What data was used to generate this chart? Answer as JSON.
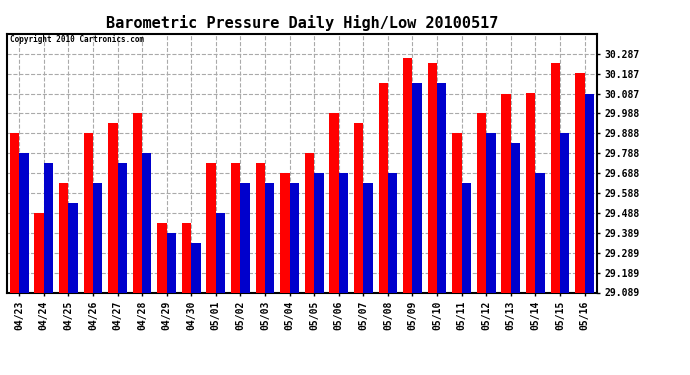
{
  "title": "Barometric Pressure Daily High/Low 20100517",
  "copyright": "Copyright 2010 Cartronics.com",
  "categories": [
    "04/23",
    "04/24",
    "04/25",
    "04/26",
    "04/27",
    "04/28",
    "04/29",
    "04/30",
    "05/01",
    "05/02",
    "05/03",
    "05/04",
    "05/05",
    "05/06",
    "05/07",
    "05/08",
    "05/09",
    "05/10",
    "05/11",
    "05/12",
    "05/13",
    "05/14",
    "05/15",
    "05/16"
  ],
  "highs": [
    29.888,
    29.488,
    29.638,
    29.888,
    29.938,
    29.988,
    29.438,
    29.438,
    29.738,
    29.738,
    29.738,
    29.688,
    29.788,
    29.988,
    29.938,
    30.138,
    30.267,
    30.238,
    29.888,
    29.988,
    30.087,
    30.088,
    30.238,
    30.188
  ],
  "lows": [
    29.788,
    29.738,
    29.538,
    29.638,
    29.738,
    29.788,
    29.388,
    29.338,
    29.488,
    29.638,
    29.638,
    29.638,
    29.688,
    29.688,
    29.638,
    29.688,
    30.138,
    30.138,
    29.638,
    29.888,
    29.838,
    29.688,
    29.888,
    30.087
  ],
  "high_color": "#ff0000",
  "low_color": "#0000cc",
  "bg_color": "#ffffff",
  "grid_color": "#aaaaaa",
  "bar_width": 0.38,
  "ylim_min": 29.089,
  "ylim_max": 30.387,
  "yticks": [
    29.089,
    29.189,
    29.289,
    29.389,
    29.488,
    29.588,
    29.688,
    29.788,
    29.888,
    29.988,
    30.087,
    30.187,
    30.287
  ],
  "title_fontsize": 11,
  "tick_fontsize": 7,
  "figwidth": 6.9,
  "figheight": 3.75,
  "dpi": 100
}
